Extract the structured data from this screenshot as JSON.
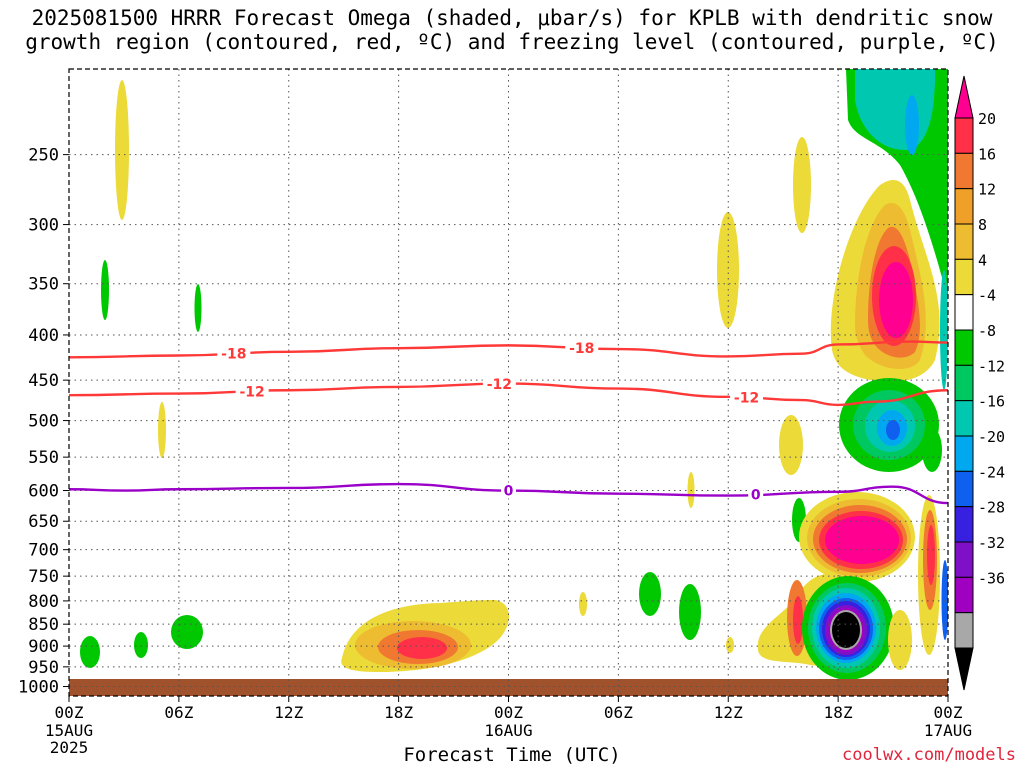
{
  "title_line1": "2025081500 HRRR Forecast Omega (shaded, μbar/s) for KPLB with dendritic snow",
  "title_line2": "growth region (contoured, red, ºC) and freezing level (contoured, purple, ºC)",
  "credit": "coolwx.com/models",
  "chart_data": {
    "type": "time-height contour",
    "xlabel": "Forecast Time (UTC)",
    "x_ticks": [
      {
        "label": "00Z",
        "sub": [
          "15AUG",
          "2025"
        ],
        "hour": 0
      },
      {
        "label": "06Z",
        "sub": [],
        "hour": 6
      },
      {
        "label": "12Z",
        "sub": [],
        "hour": 12
      },
      {
        "label": "18Z",
        "sub": [],
        "hour": 18
      },
      {
        "label": "00Z",
        "sub": [
          "16AUG"
        ],
        "hour": 24
      },
      {
        "label": "06Z",
        "sub": [],
        "hour": 30
      },
      {
        "label": "12Z",
        "sub": [],
        "hour": 36
      },
      {
        "label": "18Z",
        "sub": [],
        "hour": 42
      },
      {
        "label": "00Z",
        "sub": [
          "17AUG"
        ],
        "hour": 48
      }
    ],
    "xlim_hours": [
      0,
      48
    ],
    "y_ticks": [
      250,
      300,
      350,
      400,
      450,
      500,
      550,
      600,
      650,
      700,
      750,
      800,
      850,
      900,
      950,
      1000
    ],
    "ylim_hpa": [
      1025,
      200
    ],
    "y_scale": "log-pressure",
    "grid": true,
    "colorbar": {
      "labels": [
        "20",
        "16",
        "12",
        "8",
        "4",
        "-4",
        "-8",
        "-12",
        "-16",
        "-20",
        "-24",
        "-28",
        "-32",
        "-36"
      ],
      "colors": [
        "#ff0090",
        "#ff3048",
        "#f07830",
        "#eea028",
        "#eebc30",
        "#ecda38",
        "#ffffff",
        "#00c800",
        "#00c860",
        "#00c8b0",
        "#00a8f0",
        "#1060f0",
        "#3820e0",
        "#8010c8",
        "#a000c0",
        "#a8a8a8",
        "#000000"
      ]
    },
    "contours": [
      {
        "label": "-18",
        "color": "#ff3838",
        "values_hpa": [
          [
            0,
            424
          ],
          [
            6,
            422
          ],
          [
            12,
            418
          ],
          [
            18,
            414
          ],
          [
            24,
            411
          ],
          [
            30,
            415
          ],
          [
            36,
            423
          ],
          [
            40,
            420
          ],
          [
            42,
            410
          ],
          [
            46,
            407
          ],
          [
            48,
            408
          ]
        ]
      },
      {
        "label": "-12",
        "color": "#ff3838",
        "values_hpa": [
          [
            0,
            468
          ],
          [
            6,
            466
          ],
          [
            12,
            462
          ],
          [
            18,
            458
          ],
          [
            24,
            454
          ],
          [
            30,
            460
          ],
          [
            36,
            470
          ],
          [
            40,
            474
          ],
          [
            42,
            480
          ],
          [
            44,
            476
          ],
          [
            48,
            462
          ]
        ]
      },
      {
        "label": "0",
        "color": "#9a00c8",
        "values_hpa": [
          [
            0,
            598
          ],
          [
            3,
            600
          ],
          [
            6,
            598
          ],
          [
            12,
            596
          ],
          [
            18,
            590
          ],
          [
            24,
            600
          ],
          [
            30,
            605
          ],
          [
            36,
            608
          ],
          [
            42,
            602
          ],
          [
            45,
            594
          ],
          [
            48,
            620
          ]
        ]
      }
    ],
    "omega_regions": [
      {
        "hour": 2.8,
        "hpa": 240,
        "color": "#ecda38"
      },
      {
        "hour": 1.9,
        "hpa": 370,
        "color": "#00c800"
      },
      {
        "hour": 7.1,
        "hpa": 385,
        "color": "#00c800"
      },
      {
        "hour": 5.1,
        "hpa": 525,
        "color": "#ecda38"
      },
      {
        "hour": 1.0,
        "hpa": 945,
        "color": "#00c800"
      },
      {
        "hour": 3.8,
        "hpa": 930,
        "color": "#00c800"
      },
      {
        "hour": 6.0,
        "hpa": 900,
        "color": "#00c800"
      },
      {
        "hour": 20.0,
        "hpa": 920,
        "value": 20
      },
      {
        "hour": 29.6,
        "hpa": 855,
        "color": "#ecda38"
      },
      {
        "hour": 31.4,
        "hpa": 808,
        "color": "#00c800"
      },
      {
        "hour": 33.4,
        "hpa": 840,
        "color": "#00c800"
      },
      {
        "hour": 35.8,
        "hpa": 340,
        "color": "#ecda38"
      },
      {
        "hour": 39.9,
        "hpa": 290,
        "color": "#ecda38"
      },
      {
        "hour": 39.6,
        "hpa": 560,
        "color": "#ecda38"
      },
      {
        "hour": 39.3,
        "hpa": 690,
        "color": "#00c800"
      },
      {
        "hour": 43.0,
        "hpa": 360,
        "value": 20
      },
      {
        "hour": 43.0,
        "hpa": 520,
        "value": -20
      },
      {
        "hour": 42.3,
        "hpa": 700,
        "value": 20
      },
      {
        "hour": 42.0,
        "hpa": 870,
        "value": -36
      },
      {
        "hour": 46.5,
        "hpa": 210,
        "value": -12
      }
    ]
  }
}
